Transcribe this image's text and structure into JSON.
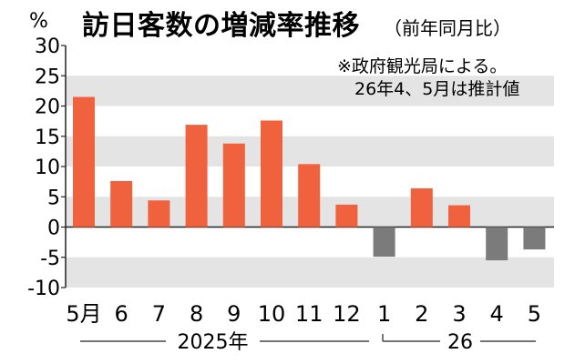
{
  "chart_data": {
    "type": "bar",
    "title": "訪日客数の増減率推移",
    "subtitle": "（前年同月比）",
    "unit_label": "%",
    "notes": [
      "※政府観光局による。",
      "26年4、5月は推計値"
    ],
    "categories": [
      "5月",
      "6",
      "7",
      "8",
      "9",
      "10",
      "11",
      "12",
      "1",
      "2",
      "3",
      "4",
      "5"
    ],
    "year_groups": [
      {
        "label": "2025年",
        "range": [
          0,
          7
        ]
      },
      {
        "label": "26",
        "range": [
          8,
          12
        ]
      }
    ],
    "values": [
      21.5,
      7.6,
      4.4,
      16.9,
      13.8,
      17.6,
      10.4,
      3.7,
      -4.9,
      6.4,
      3.6,
      -5.5,
      -3.7
    ],
    "ylim": [
      -10,
      30
    ],
    "yticks": [
      30,
      25,
      20,
      15,
      10,
      5,
      0,
      -5,
      -10
    ],
    "grid": "alternating bands",
    "colors": {
      "positive": "#f0613e",
      "negative": "#7b7b7b",
      "band": "#e4e4e4",
      "text": "#111111"
    }
  }
}
